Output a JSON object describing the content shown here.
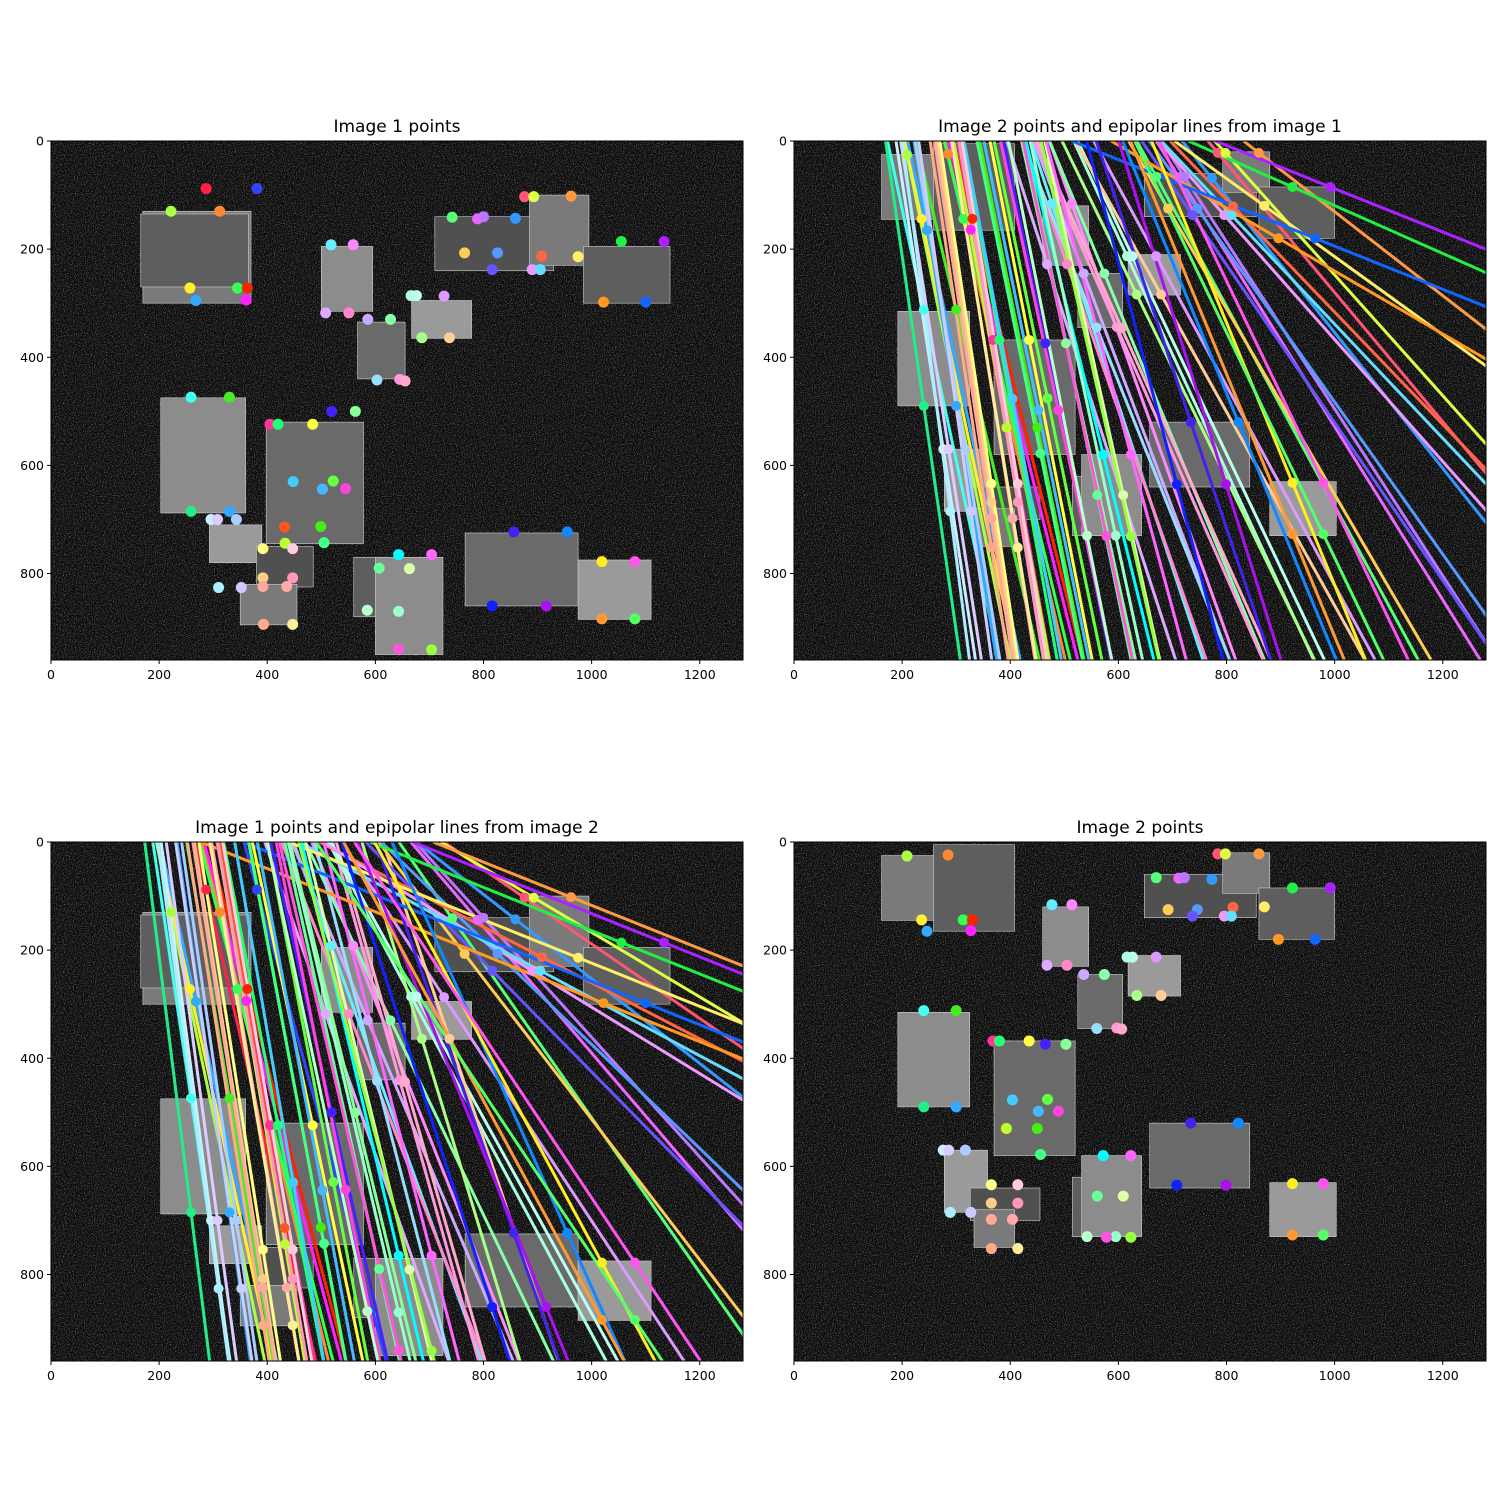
{
  "chart_data": [
    {
      "type": "scatter",
      "title": "Image 1 points",
      "xlim": [
        0,
        1280
      ],
      "ylim": [
        960,
        0
      ],
      "x_ticks": [
        0,
        200,
        400,
        600,
        800,
        1000,
        1200
      ],
      "y_ticks": [
        0,
        200,
        400,
        600,
        800
      ],
      "background": "#0b0b0b",
      "grid": false,
      "legend": "none",
      "points": [
        {
          "x": 287,
          "y": 88,
          "color": "#ff2244"
        },
        {
          "x": 381,
          "y": 88,
          "color": "#3344ff"
        },
        {
          "x": 222,
          "y": 130,
          "color": "#aaff44"
        },
        {
          "x": 312,
          "y": 130,
          "color": "#ff8833"
        },
        {
          "x": 257,
          "y": 272,
          "color": "#ffee33"
        },
        {
          "x": 268,
          "y": 295,
          "color": "#33aaff"
        },
        {
          "x": 345,
          "y": 272,
          "color": "#33ff55"
        },
        {
          "x": 363,
          "y": 272,
          "color": "#ff2200"
        },
        {
          "x": 361,
          "y": 294,
          "color": "#ff22ff"
        },
        {
          "x": 518,
          "y": 192,
          "color": "#66eeff"
        },
        {
          "x": 559,
          "y": 192,
          "color": "#ff88ff"
        },
        {
          "x": 508,
          "y": 318,
          "color": "#ddaaff"
        },
        {
          "x": 551,
          "y": 318,
          "color": "#ff88cc"
        },
        {
          "x": 586,
          "y": 330,
          "color": "#ccaaff"
        },
        {
          "x": 628,
          "y": 330,
          "color": "#88ffaa"
        },
        {
          "x": 603,
          "y": 442,
          "color": "#99ddff"
        },
        {
          "x": 645,
          "y": 441,
          "color": "#ff99dd"
        },
        {
          "x": 655,
          "y": 444,
          "color": "#ffaacc"
        },
        {
          "x": 666,
          "y": 286,
          "color": "#aaffdd"
        },
        {
          "x": 676,
          "y": 286,
          "color": "#bbffee"
        },
        {
          "x": 727,
          "y": 287,
          "color": "#dd99ff"
        },
        {
          "x": 686,
          "y": 364,
          "color": "#aaff88"
        },
        {
          "x": 737,
          "y": 364,
          "color": "#ffcc99"
        },
        {
          "x": 742,
          "y": 141,
          "color": "#55ff77"
        },
        {
          "x": 789,
          "y": 144,
          "color": "#ee66ff"
        },
        {
          "x": 800,
          "y": 140,
          "color": "#bb77ff"
        },
        {
          "x": 859,
          "y": 143,
          "color": "#3399ff"
        },
        {
          "x": 765,
          "y": 207,
          "color": "#ffcc55"
        },
        {
          "x": 826,
          "y": 207,
          "color": "#5599ff"
        },
        {
          "x": 816,
          "y": 238,
          "color": "#6655ff"
        },
        {
          "x": 876,
          "y": 103,
          "color": "#ff5577"
        },
        {
          "x": 893,
          "y": 103,
          "color": "#ddff44"
        },
        {
          "x": 962,
          "y": 102,
          "color": "#ff9944"
        },
        {
          "x": 908,
          "y": 213,
          "color": "#ff6644"
        },
        {
          "x": 890,
          "y": 238,
          "color": "#ee99ff"
        },
        {
          "x": 905,
          "y": 238,
          "color": "#66ddff"
        },
        {
          "x": 975,
          "y": 214,
          "color": "#ffee66"
        },
        {
          "x": 1055,
          "y": 186,
          "color": "#22ee44"
        },
        {
          "x": 1134,
          "y": 186,
          "color": "#aa22ff"
        },
        {
          "x": 1022,
          "y": 298,
          "color": "#ff9922"
        },
        {
          "x": 1100,
          "y": 298,
          "color": "#1166ff"
        },
        {
          "x": 259,
          "y": 474,
          "color": "#44ffee"
        },
        {
          "x": 330,
          "y": 474,
          "color": "#44ee22"
        },
        {
          "x": 259,
          "y": 685,
          "color": "#22ee88"
        },
        {
          "x": 330,
          "y": 685,
          "color": "#33aaff"
        },
        {
          "x": 405,
          "y": 524,
          "color": "#ff3399"
        },
        {
          "x": 420,
          "y": 524,
          "color": "#22ff77"
        },
        {
          "x": 484,
          "y": 524,
          "color": "#ffff44"
        },
        {
          "x": 519,
          "y": 500,
          "color": "#4422ff"
        },
        {
          "x": 563,
          "y": 500,
          "color": "#88ff99"
        },
        {
          "x": 448,
          "y": 630,
          "color": "#44ccff"
        },
        {
          "x": 522,
          "y": 629,
          "color": "#66ff44"
        },
        {
          "x": 502,
          "y": 644,
          "color": "#44bbff"
        },
        {
          "x": 545,
          "y": 643,
          "color": "#ff44dd"
        },
        {
          "x": 432,
          "y": 714,
          "color": "#ff5522"
        },
        {
          "x": 433,
          "y": 744,
          "color": "#bbff33"
        },
        {
          "x": 499,
          "y": 713,
          "color": "#44ee11"
        },
        {
          "x": 505,
          "y": 743,
          "color": "#44ff88"
        },
        {
          "x": 296,
          "y": 700,
          "color": "#cceeff"
        },
        {
          "x": 308,
          "y": 700,
          "color": "#ddccff"
        },
        {
          "x": 343,
          "y": 700,
          "color": "#aaccff"
        },
        {
          "x": 392,
          "y": 754,
          "color": "#ffff88"
        },
        {
          "x": 447,
          "y": 754,
          "color": "#ffccdd"
        },
        {
          "x": 310,
          "y": 826,
          "color": "#aaeeff"
        },
        {
          "x": 352,
          "y": 826,
          "color": "#ccccff"
        },
        {
          "x": 392,
          "y": 808,
          "color": "#ffcc88"
        },
        {
          "x": 447,
          "y": 808,
          "color": "#ff99bb"
        },
        {
          "x": 392,
          "y": 824,
          "color": "#ffaa99"
        },
        {
          "x": 436,
          "y": 824,
          "color": "#ffaaaa"
        },
        {
          "x": 393,
          "y": 894,
          "color": "#ffaa88"
        },
        {
          "x": 447,
          "y": 894,
          "color": "#ffee99"
        },
        {
          "x": 607,
          "y": 790,
          "color": "#66ff99"
        },
        {
          "x": 643,
          "y": 765,
          "color": "#00ffff"
        },
        {
          "x": 663,
          "y": 791,
          "color": "#ddffaa"
        },
        {
          "x": 704,
          "y": 765,
          "color": "#ff66ff"
        },
        {
          "x": 585,
          "y": 868,
          "color": "#bbffcc"
        },
        {
          "x": 643,
          "y": 870,
          "color": "#99ffcc"
        },
        {
          "x": 643,
          "y": 940,
          "color": "#ff55dd"
        },
        {
          "x": 704,
          "y": 941,
          "color": "#99ff44"
        },
        {
          "x": 856,
          "y": 723,
          "color": "#4422ee"
        },
        {
          "x": 955,
          "y": 723,
          "color": "#1188ff"
        },
        {
          "x": 816,
          "y": 860,
          "color": "#1122ff"
        },
        {
          "x": 916,
          "y": 860,
          "color": "#aa11ee"
        },
        {
          "x": 1019,
          "y": 778,
          "color": "#ffee22"
        },
        {
          "x": 1080,
          "y": 778,
          "color": "#ff55ee"
        },
        {
          "x": 1019,
          "y": 884,
          "color": "#ff9933"
        },
        {
          "x": 1080,
          "y": 884,
          "color": "#55ff66"
        }
      ]
    },
    {
      "type": "line",
      "title": "Image 2 points and epipolar lines from image 1",
      "xlim": [
        0,
        1280
      ],
      "ylim": [
        960,
        0
      ],
      "x_ticks": [
        0,
        200,
        400,
        600,
        800,
        1000,
        1200
      ],
      "y_ticks": [
        0,
        200,
        400,
        600,
        800
      ],
      "background": "#0b0b0b",
      "grid": false,
      "legend": "none"
    },
    {
      "type": "line",
      "title": "Image 1 points and epipolar lines from image 2",
      "xlim": [
        0,
        1280
      ],
      "ylim": [
        960,
        0
      ],
      "x_ticks": [
        0,
        200,
        400,
        600,
        800,
        1000,
        1200
      ],
      "y_ticks": [
        0,
        200,
        400,
        600,
        800
      ],
      "background": "#0b0b0b",
      "grid": false,
      "legend": "none"
    },
    {
      "type": "scatter",
      "title": "Image 2 points",
      "xlim": [
        0,
        1280
      ],
      "ylim": [
        960,
        0
      ],
      "x_ticks": [
        0,
        200,
        400,
        600,
        800,
        1000,
        1200
      ],
      "y_ticks": [
        0,
        200,
        400,
        600,
        800
      ],
      "background": "#0b0b0b",
      "grid": false,
      "legend": "none",
      "points": [
        {
          "x": 209,
          "y": 26,
          "color": "#aaff44"
        },
        {
          "x": 285,
          "y": 24,
          "color": "#ff8833"
        },
        {
          "x": 236,
          "y": 144,
          "color": "#ffee33"
        },
        {
          "x": 246,
          "y": 165,
          "color": "#33aaff"
        },
        {
          "x": 313,
          "y": 144,
          "color": "#33ff55"
        },
        {
          "x": 330,
          "y": 144,
          "color": "#ff2200"
        },
        {
          "x": 327,
          "y": 164,
          "color": "#ff22ff"
        },
        {
          "x": 477,
          "y": 116,
          "color": "#66eeff"
        },
        {
          "x": 514,
          "y": 116,
          "color": "#ff88ff"
        },
        {
          "x": 468,
          "y": 228,
          "color": "#ddaaff"
        },
        {
          "x": 505,
          "y": 228,
          "color": "#ff88cc"
        },
        {
          "x": 536,
          "y": 245,
          "color": "#ccaaff"
        },
        {
          "x": 574,
          "y": 245,
          "color": "#88ffaa"
        },
        {
          "x": 560,
          "y": 345,
          "color": "#99ddff"
        },
        {
          "x": 597,
          "y": 344,
          "color": "#ff99dd"
        },
        {
          "x": 606,
          "y": 346,
          "color": "#ffaacc"
        },
        {
          "x": 616,
          "y": 213,
          "color": "#aaffdd"
        },
        {
          "x": 626,
          "y": 213,
          "color": "#bbffee"
        },
        {
          "x": 670,
          "y": 213,
          "color": "#dd99ff"
        },
        {
          "x": 634,
          "y": 284,
          "color": "#aaff88"
        },
        {
          "x": 679,
          "y": 284,
          "color": "#ffcc99"
        },
        {
          "x": 670,
          "y": 66,
          "color": "#55ff77"
        },
        {
          "x": 712,
          "y": 67,
          "color": "#ee66ff"
        },
        {
          "x": 722,
          "y": 66,
          "color": "#bb77ff"
        },
        {
          "x": 773,
          "y": 69,
          "color": "#3399ff"
        },
        {
          "x": 692,
          "y": 125,
          "color": "#ffcc55"
        },
        {
          "x": 746,
          "y": 125,
          "color": "#5599ff"
        },
        {
          "x": 737,
          "y": 137,
          "color": "#6655ff"
        },
        {
          "x": 784,
          "y": 22,
          "color": "#ff5577"
        },
        {
          "x": 798,
          "y": 22,
          "color": "#ddff44"
        },
        {
          "x": 860,
          "y": 22,
          "color": "#ff9944"
        },
        {
          "x": 812,
          "y": 121,
          "color": "#ff6644"
        },
        {
          "x": 796,
          "y": 137,
          "color": "#ee99ff"
        },
        {
          "x": 809,
          "y": 137,
          "color": "#66ddff"
        },
        {
          "x": 870,
          "y": 120,
          "color": "#ffee66"
        },
        {
          "x": 922,
          "y": 85,
          "color": "#22ee44"
        },
        {
          "x": 992,
          "y": 85,
          "color": "#aa22ff"
        },
        {
          "x": 896,
          "y": 180,
          "color": "#ff9922"
        },
        {
          "x": 964,
          "y": 180,
          "color": "#1166ff"
        },
        {
          "x": 240,
          "y": 312,
          "color": "#44ffee"
        },
        {
          "x": 300,
          "y": 312,
          "color": "#44ee22"
        },
        {
          "x": 240,
          "y": 490,
          "color": "#22ee88"
        },
        {
          "x": 300,
          "y": 490,
          "color": "#33aaff"
        },
        {
          "x": 368,
          "y": 368,
          "color": "#ff3399"
        },
        {
          "x": 380,
          "y": 368,
          "color": "#22ff77"
        },
        {
          "x": 435,
          "y": 368,
          "color": "#ffff44"
        },
        {
          "x": 465,
          "y": 374,
          "color": "#4422ff"
        },
        {
          "x": 503,
          "y": 374,
          "color": "#88ff99"
        },
        {
          "x": 404,
          "y": 477,
          "color": "#44ccff"
        },
        {
          "x": 469,
          "y": 476,
          "color": "#66ff44"
        },
        {
          "x": 452,
          "y": 498,
          "color": "#44bbff"
        },
        {
          "x": 489,
          "y": 498,
          "color": "#ff44dd"
        },
        {
          "x": 392,
          "y": 530,
          "color": "#ff5522"
        },
        {
          "x": 393,
          "y": 530,
          "color": "#bbff33"
        },
        {
          "x": 450,
          "y": 530,
          "color": "#44ee11"
        },
        {
          "x": 456,
          "y": 578,
          "color": "#44ff88"
        },
        {
          "x": 276,
          "y": 570,
          "color": "#cceeff"
        },
        {
          "x": 286,
          "y": 570,
          "color": "#ddccff"
        },
        {
          "x": 317,
          "y": 570,
          "color": "#aaccff"
        },
        {
          "x": 365,
          "y": 634,
          "color": "#ffff88"
        },
        {
          "x": 414,
          "y": 634,
          "color": "#ffccdd"
        },
        {
          "x": 289,
          "y": 685,
          "color": "#aaeeff"
        },
        {
          "x": 327,
          "y": 685,
          "color": "#ccccff"
        },
        {
          "x": 365,
          "y": 668,
          "color": "#ffcc88"
        },
        {
          "x": 414,
          "y": 668,
          "color": "#ff99bb"
        },
        {
          "x": 365,
          "y": 698,
          "color": "#ffaa99"
        },
        {
          "x": 404,
          "y": 698,
          "color": "#ffaaaa"
        },
        {
          "x": 365,
          "y": 752,
          "color": "#ffaa88"
        },
        {
          "x": 414,
          "y": 752,
          "color": "#ffee99"
        },
        {
          "x": 561,
          "y": 655,
          "color": "#66ff99"
        },
        {
          "x": 572,
          "y": 580,
          "color": "#00ffff"
        },
        {
          "x": 609,
          "y": 655,
          "color": "#ddffaa"
        },
        {
          "x": 623,
          "y": 580,
          "color": "#ff66ff"
        },
        {
          "x": 542,
          "y": 730,
          "color": "#bbffcc"
        },
        {
          "x": 595,
          "y": 730,
          "color": "#99ffcc"
        },
        {
          "x": 578,
          "y": 731,
          "color": "#ff55dd"
        },
        {
          "x": 623,
          "y": 731,
          "color": "#99ff44"
        },
        {
          "x": 734,
          "y": 520,
          "color": "#4422ee"
        },
        {
          "x": 822,
          "y": 520,
          "color": "#1188ff"
        },
        {
          "x": 708,
          "y": 635,
          "color": "#1122ff"
        },
        {
          "x": 799,
          "y": 635,
          "color": "#aa11ee"
        },
        {
          "x": 922,
          "y": 632,
          "color": "#ffee22"
        },
        {
          "x": 979,
          "y": 632,
          "color": "#ff55ee"
        },
        {
          "x": 922,
          "y": 727,
          "color": "#ff9933"
        },
        {
          "x": 979,
          "y": 727,
          "color": "#55ff66"
        }
      ]
    }
  ]
}
